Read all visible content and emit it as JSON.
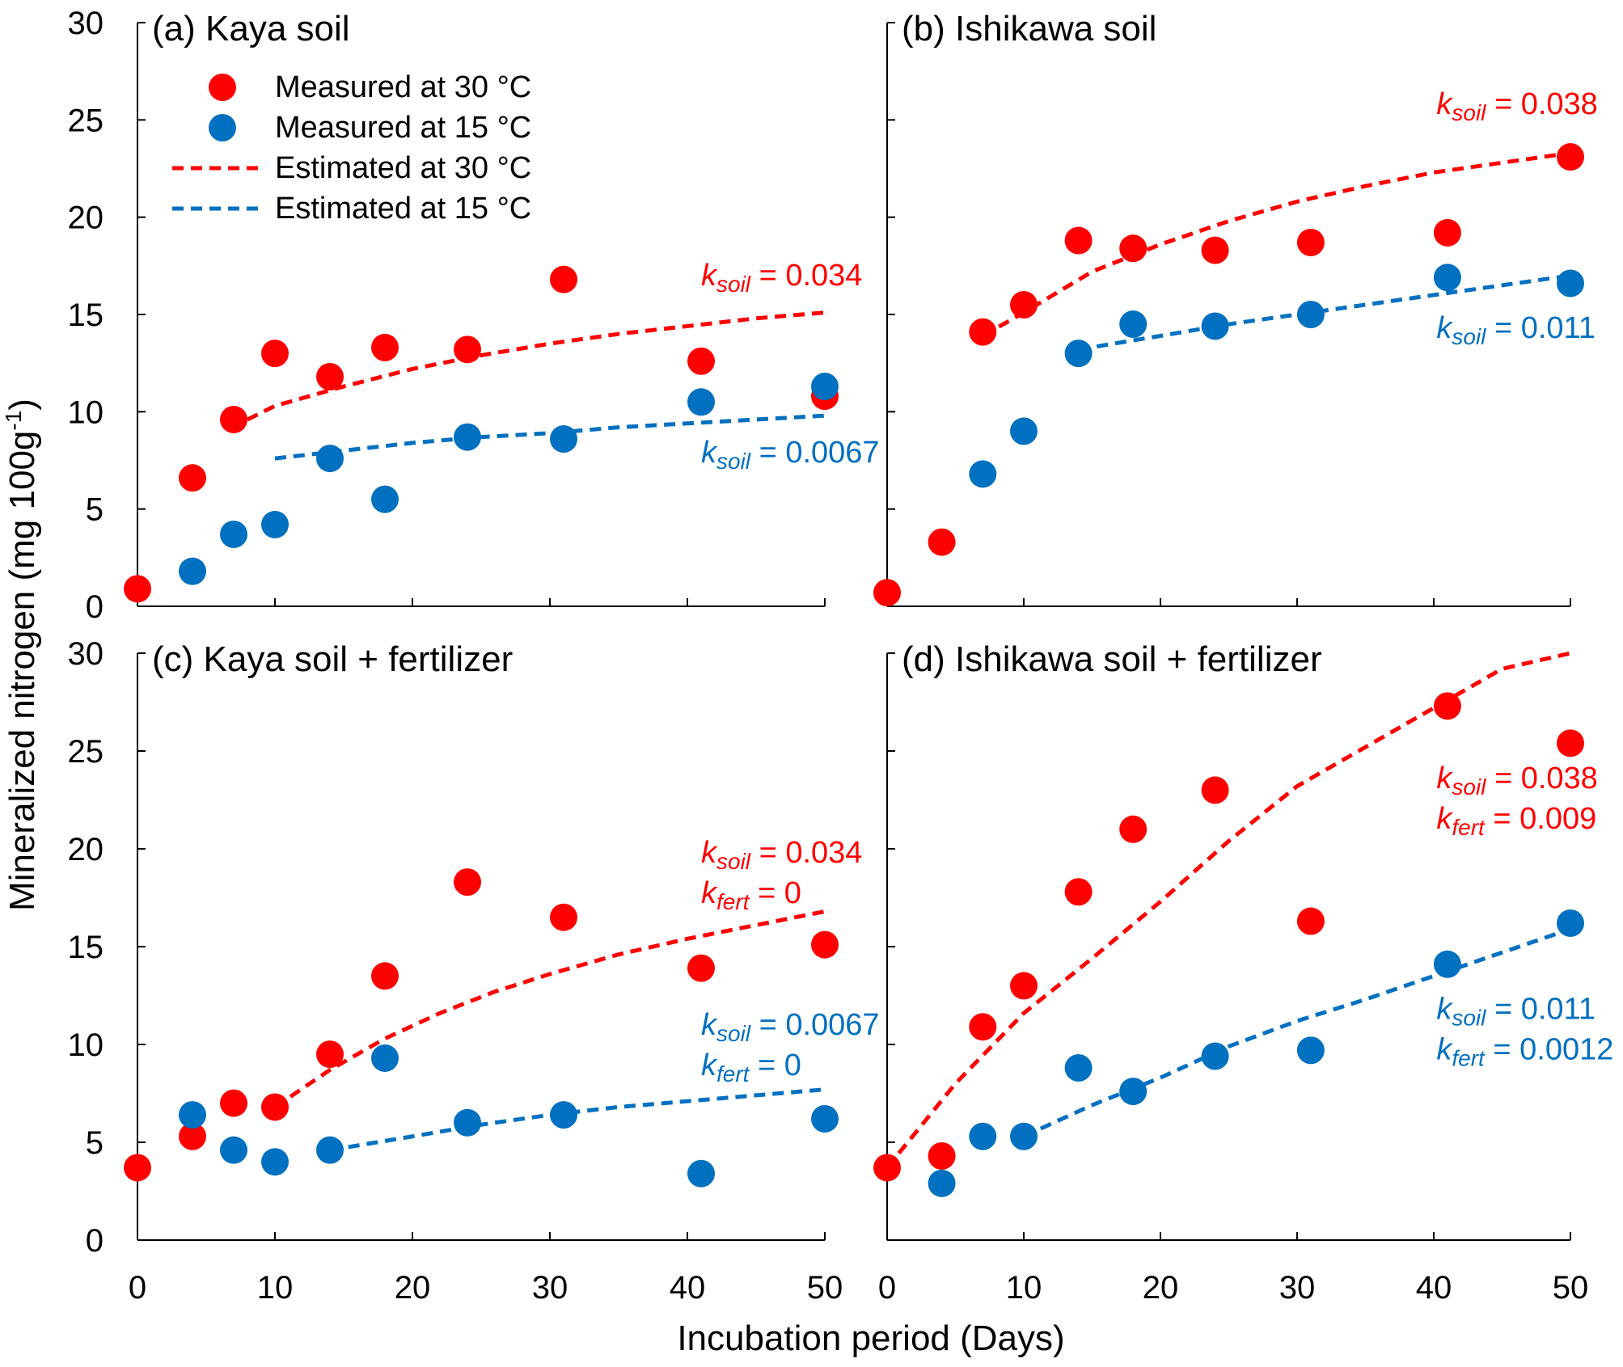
{
  "figure": {
    "ylabel_main": "Mineralized nitrogen (mg 100g",
    "ylabel_sup": "-1",
    "ylabel_close": ")",
    "xlabel": "Incubation period (Days)"
  },
  "legend": {
    "items": [
      {
        "label": "Measured at 30 °C",
        "kind": "marker",
        "color": "#ff0000"
      },
      {
        "label": "Measured at 15 °C",
        "kind": "marker",
        "color": "#0070c0"
      },
      {
        "label": "Estimated at 30 °C",
        "kind": "line",
        "color": "#ff0000"
      },
      {
        "label": "Estimated at 15 °C",
        "kind": "line",
        "color": "#0070c0"
      }
    ]
  },
  "chart_data": [
    {
      "type": "scatter",
      "title": "(a) Kaya soil",
      "xlim": [
        0,
        50
      ],
      "ylim": [
        0,
        30
      ],
      "xticks": [
        "0",
        "10",
        "20",
        "30",
        "40",
        "50"
      ],
      "yticks": [
        "0",
        "5",
        "10",
        "15",
        "20",
        "25",
        "30"
      ],
      "series": [
        {
          "name": "Measured at 30 °C",
          "color": "#ff0000",
          "x": [
            0,
            4,
            7,
            10,
            14,
            18,
            24,
            31,
            41,
            50
          ],
          "y": [
            0.9,
            6.6,
            9.6,
            13.0,
            11.8,
            13.3,
            13.2,
            16.8,
            12.6,
            10.8
          ]
        },
        {
          "name": "Measured at 15 °C",
          "color": "#0070c0",
          "x": [
            4,
            7,
            10,
            14,
            18,
            24,
            31,
            41,
            50
          ],
          "y": [
            1.8,
            3.7,
            4.2,
            7.6,
            5.5,
            8.7,
            8.6,
            10.5,
            11.3
          ]
        }
      ],
      "fits": [
        {
          "name": "Estimated at 30 °C",
          "color": "#ff0000",
          "x": [
            8,
            10,
            15,
            20,
            25,
            30,
            35,
            40,
            45,
            50
          ],
          "y": [
            9.6,
            10.3,
            11.3,
            12.2,
            12.9,
            13.5,
            14.0,
            14.4,
            14.8,
            15.1
          ]
        },
        {
          "name": "Estimated at 15 °C",
          "color": "#0070c0",
          "x": [
            10,
            15,
            20,
            25,
            30,
            35,
            40,
            45,
            50
          ],
          "y": [
            7.6,
            8.0,
            8.4,
            8.7,
            8.9,
            9.2,
            9.4,
            9.6,
            9.8
          ]
        }
      ],
      "annotations": [
        {
          "color": "#ff0000",
          "lines": [
            {
              "k": "k",
              "sub": "soil",
              "val": " = 0.034"
            }
          ],
          "at": [
            41,
            16.5
          ]
        },
        {
          "color": "#0070c0",
          "lines": [
            {
              "k": "k",
              "sub": "soil",
              "val": " = 0.0067"
            }
          ],
          "at": [
            41,
            7.4
          ]
        }
      ]
    },
    {
      "type": "scatter",
      "title": "(b) Ishikawa soil",
      "xlim": [
        0,
        50
      ],
      "ylim": [
        0,
        30
      ],
      "xticks": [
        "0",
        "10",
        "20",
        "30",
        "40",
        "50"
      ],
      "yticks": [],
      "series": [
        {
          "name": "Measured at 30 °C",
          "color": "#ff0000",
          "x": [
            0,
            4,
            7,
            10,
            14,
            18,
            24,
            31,
            41,
            50
          ],
          "y": [
            0.7,
            3.3,
            14.1,
            15.5,
            18.8,
            18.4,
            18.3,
            18.7,
            19.2,
            23.1
          ]
        },
        {
          "name": "Measured at 15 °C",
          "color": "#0070c0",
          "x": [
            7,
            10,
            14,
            18,
            24,
            31,
            41,
            50
          ],
          "y": [
            6.8,
            9.0,
            13.0,
            14.5,
            14.4,
            15.0,
            16.9,
            16.6
          ]
        }
      ],
      "fits": [
        {
          "name": "Estimated at 30 °C",
          "color": "#ff0000",
          "x": [
            7,
            10,
            15,
            20,
            25,
            30,
            35,
            40,
            45,
            50
          ],
          "y": [
            13.9,
            15.1,
            17.2,
            18.6,
            19.8,
            20.8,
            21.6,
            22.3,
            22.8,
            23.3
          ]
        },
        {
          "name": "Estimated at 15 °C",
          "color": "#0070c0",
          "x": [
            14,
            20,
            25,
            30,
            35,
            40,
            45,
            50
          ],
          "y": [
            13.2,
            13.9,
            14.5,
            15.0,
            15.5,
            16.0,
            16.5,
            17.0
          ]
        }
      ],
      "annotations": [
        {
          "color": "#ff0000",
          "lines": [
            {
              "k": "k",
              "sub": "soil",
              "val": " = 0.038"
            }
          ],
          "at": [
            40.2,
            25.3
          ]
        },
        {
          "color": "#0070c0",
          "lines": [
            {
              "k": "k",
              "sub": "soil",
              "val": " = 0.011"
            }
          ],
          "at": [
            40.2,
            13.8
          ]
        }
      ]
    },
    {
      "type": "scatter",
      "title": "(c) Kaya soil + fertilizer",
      "xlim": [
        0,
        50
      ],
      "ylim": [
        0,
        30
      ],
      "xticks": [
        "0",
        "10",
        "20",
        "30",
        "40",
        "50"
      ],
      "yticks": [
        "0",
        "5",
        "10",
        "15",
        "20",
        "25",
        "30"
      ],
      "series": [
        {
          "name": "Measured at 30 °C",
          "color": "#ff0000",
          "x": [
            0,
            4,
            7,
            10,
            14,
            18,
            24,
            31,
            41,
            50
          ],
          "y": [
            3.7,
            5.3,
            7.0,
            6.8,
            9.5,
            13.5,
            18.3,
            16.5,
            13.9,
            15.1
          ]
        },
        {
          "name": "Measured at 15 °C",
          "color": "#0070c0",
          "x": [
            4,
            7,
            10,
            14,
            18,
            24,
            31,
            41,
            50
          ],
          "y": [
            6.4,
            4.6,
            4.0,
            4.6,
            9.3,
            6.0,
            6.4,
            3.4,
            6.2
          ]
        }
      ],
      "fits": [
        {
          "name": "Estimated at 30 °C",
          "color": "#ff0000",
          "x": [
            10,
            14,
            18,
            22,
            26,
            30,
            35,
            40,
            45,
            50
          ],
          "y": [
            6.8,
            8.7,
            10.3,
            11.6,
            12.7,
            13.6,
            14.6,
            15.4,
            16.1,
            16.8
          ]
        },
        {
          "name": "Estimated at 15 °C",
          "color": "#0070c0",
          "x": [
            14,
            20,
            25,
            30,
            35,
            40,
            45,
            50
          ],
          "y": [
            4.6,
            5.3,
            5.9,
            6.4,
            6.8,
            7.1,
            7.4,
            7.7
          ]
        }
      ],
      "annotations": [
        {
          "color": "#ff0000",
          "lines": [
            {
              "k": "k",
              "sub": "soil",
              "val": " = 0.034"
            },
            {
              "k": "k",
              "sub": "fert",
              "val": " = 0"
            }
          ],
          "at": [
            41,
            19.3
          ]
        },
        {
          "color": "#0070c0",
          "lines": [
            {
              "k": "k",
              "sub": "soil",
              "val": " = 0.0067"
            },
            {
              "k": "k",
              "sub": "fert",
              "val": " = 0"
            }
          ],
          "at": [
            41,
            10.5
          ]
        }
      ]
    },
    {
      "type": "scatter",
      "title": "(d) Ishikawa soil + fertilizer",
      "xlim": [
        0,
        50
      ],
      "ylim": [
        0,
        30
      ],
      "xticks": [
        "0",
        "10",
        "20",
        "30",
        "40",
        "50"
      ],
      "yticks": [],
      "series": [
        {
          "name": "Measured at 30 °C",
          "color": "#ff0000",
          "x": [
            0,
            4,
            7,
            10,
            14,
            18,
            24,
            31,
            41,
            50
          ],
          "y": [
            3.7,
            4.3,
            10.9,
            13.0,
            17.8,
            21.0,
            23.0,
            16.3,
            27.3,
            25.4
          ]
        },
        {
          "name": "Measured at 15 °C",
          "color": "#0070c0",
          "x": [
            4,
            7,
            10,
            14,
            18,
            24,
            31,
            41,
            50
          ],
          "y": [
            2.9,
            5.3,
            5.3,
            8.8,
            7.6,
            9.4,
            9.7,
            14.1,
            16.2
          ]
        }
      ],
      "fits": [
        {
          "name": "Estimated at 30 °C",
          "color": "#ff0000",
          "x": [
            0,
            5,
            10,
            15,
            20,
            25,
            30,
            35,
            40,
            45,
            50
          ],
          "y": [
            3.7,
            8.0,
            11.6,
            14.4,
            17.3,
            20.4,
            23.2,
            25.2,
            27.2,
            29.2,
            30.4
          ]
        },
        {
          "name": "Estimated at 15 °C",
          "color": "#0070c0",
          "x": [
            10,
            15,
            20,
            25,
            30,
            35,
            40,
            45,
            50
          ],
          "y": [
            5.3,
            6.9,
            8.3,
            9.9,
            11.2,
            12.3,
            13.5,
            14.7,
            15.9
          ]
        }
      ],
      "annotations": [
        {
          "color": "#ff0000",
          "lines": [
            {
              "k": "k",
              "sub": "soil",
              "val": " = 0.038"
            },
            {
              "k": "k",
              "sub": "fert",
              "val": " = 0.009"
            }
          ],
          "at": [
            40.2,
            23.1
          ]
        },
        {
          "color": "#0070c0",
          "lines": [
            {
              "k": "k",
              "sub": "soil",
              "val": " = 0.011"
            },
            {
              "k": "k",
              "sub": "fert",
              "val": " = 0.0012"
            }
          ],
          "at": [
            40.2,
            11.3
          ]
        }
      ]
    }
  ]
}
